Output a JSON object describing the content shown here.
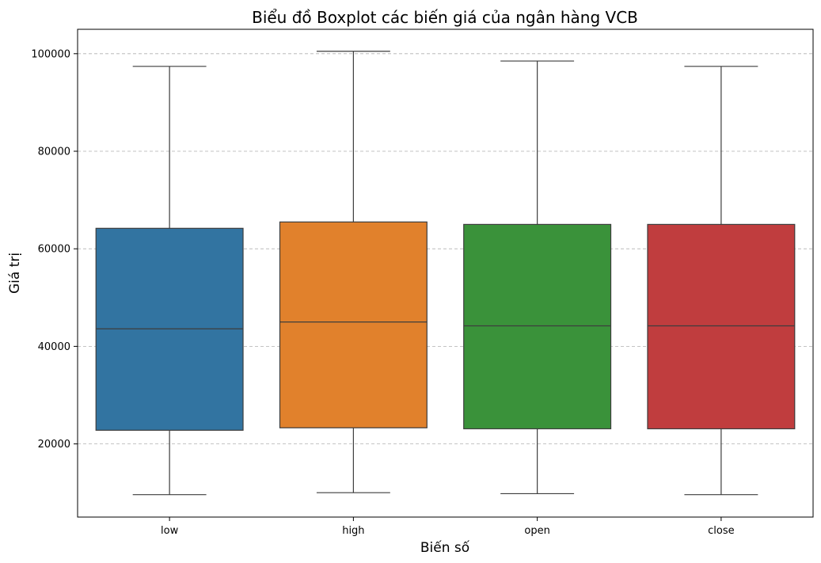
{
  "chart_data": {
    "type": "boxplot",
    "title": "Biểu đồ Boxplot các biến giá của ngân hàng VCB",
    "xlabel": "Biến số",
    "ylabel": "Giá trị",
    "ylim": [
      5000,
      105000
    ],
    "yticks": [
      20000,
      40000,
      60000,
      80000,
      100000
    ],
    "ytick_labels": [
      "20000",
      "40000",
      "60000",
      "80000",
      "100000"
    ],
    "grid": "y-dashed",
    "series": [
      {
        "category": "low",
        "min": 9600,
        "q1": 22800,
        "median": 43600,
        "q3": 64200,
        "max": 97400,
        "color": "#3274a1"
      },
      {
        "category": "high",
        "min": 10000,
        "q1": 23300,
        "median": 45000,
        "q3": 65500,
        "max": 100500,
        "color": "#e1812c"
      },
      {
        "category": "open",
        "min": 9800,
        "q1": 23100,
        "median": 44200,
        "q3": 65000,
        "max": 98500,
        "color": "#3a923a"
      },
      {
        "category": "close",
        "min": 9600,
        "q1": 23100,
        "median": 44200,
        "q3": 65000,
        "max": 97400,
        "color": "#c03d3e"
      }
    ]
  }
}
